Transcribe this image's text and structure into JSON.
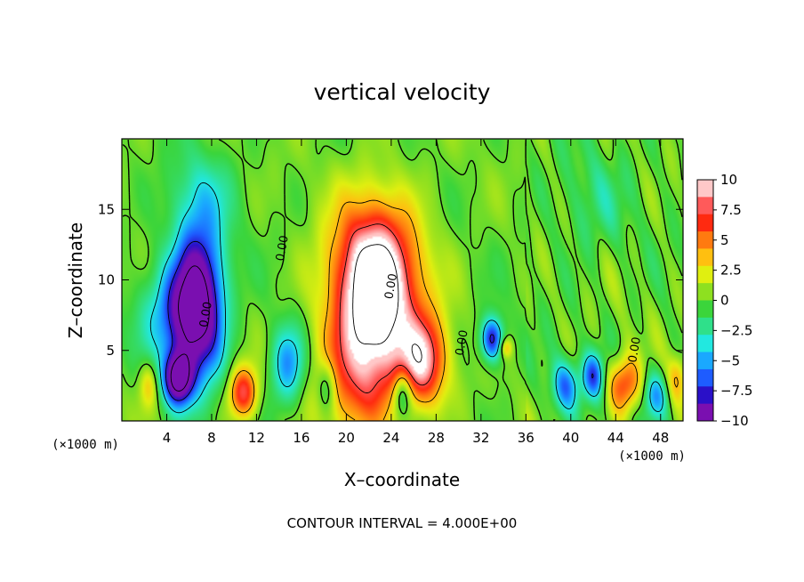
{
  "chart_data": {
    "type": "heatmap",
    "title": "vertical velocity",
    "xlabel": "X–coordinate",
    "ylabel": "Z–coordinate",
    "x_unit_label": "(×1000 m)",
    "x_unit_label_right": "(×1000 m)",
    "footer": "CONTOUR INTERVAL = 4.000E+00",
    "xlim": [
      0,
      50
    ],
    "ylim": [
      0,
      20
    ],
    "x_ticks": [
      4,
      8,
      12,
      16,
      20,
      24,
      28,
      32,
      36,
      40,
      44,
      48
    ],
    "x_tick_labels": [
      "4",
      "8",
      "12",
      "16",
      "20",
      "24",
      "28",
      "32",
      "36",
      "40",
      "44",
      "48"
    ],
    "y_ticks": [
      5,
      10,
      15
    ],
    "y_tick_labels": [
      "5",
      "10",
      "15"
    ],
    "colorbar": {
      "range": [
        -10,
        10
      ],
      "ticks": [
        10,
        7.5,
        5,
        2.5,
        0,
        -2.5,
        -5,
        -7.5,
        -10
      ],
      "tick_labels": [
        "10",
        "7.5",
        "5",
        "2.5",
        "0",
        "−2.5",
        "−5",
        "−7.5",
        "−10"
      ],
      "colors": [
        "#7a0fb0",
        "#2a10c8",
        "#1e5cff",
        "#1aa8ff",
        "#22e8e0",
        "#2fe08a",
        "#3bd53b",
        "#8ee020",
        "#e0ef10",
        "#ffbf10",
        "#ff7a10",
        "#ff2a10",
        "#ff5a5a",
        "#ffc8c8"
      ]
    },
    "contour_interval": 4,
    "contour_labels": [
      "0.00",
      "0.00",
      "0.00",
      "0.00",
      "0.00"
    ],
    "features": [
      {
        "kind": "updraft",
        "x": 22.5,
        "z": 9.0,
        "peak": 13
      },
      {
        "kind": "updraft",
        "x": 26.8,
        "z": 4.2,
        "peak": 9
      },
      {
        "kind": "updraft",
        "x": 10.8,
        "z": 2.0,
        "peak": 8
      },
      {
        "kind": "updraft",
        "x": 44.8,
        "z": 2.6,
        "peak": 7
      },
      {
        "kind": "downdraft",
        "x": 6.8,
        "z": 8.5,
        "peak": -13
      },
      {
        "kind": "downdraft",
        "x": 5.0,
        "z": 3.0,
        "peak": -12
      },
      {
        "kind": "downdraft",
        "x": 14.8,
        "z": 4.0,
        "peak": -6
      },
      {
        "kind": "downdraft",
        "x": 33.0,
        "z": 5.8,
        "peak": -9
      },
      {
        "kind": "downdraft",
        "x": 39.5,
        "z": 2.5,
        "peak": -6
      },
      {
        "kind": "downdraft",
        "x": 42.0,
        "z": 3.2,
        "peak": -7
      }
    ]
  }
}
